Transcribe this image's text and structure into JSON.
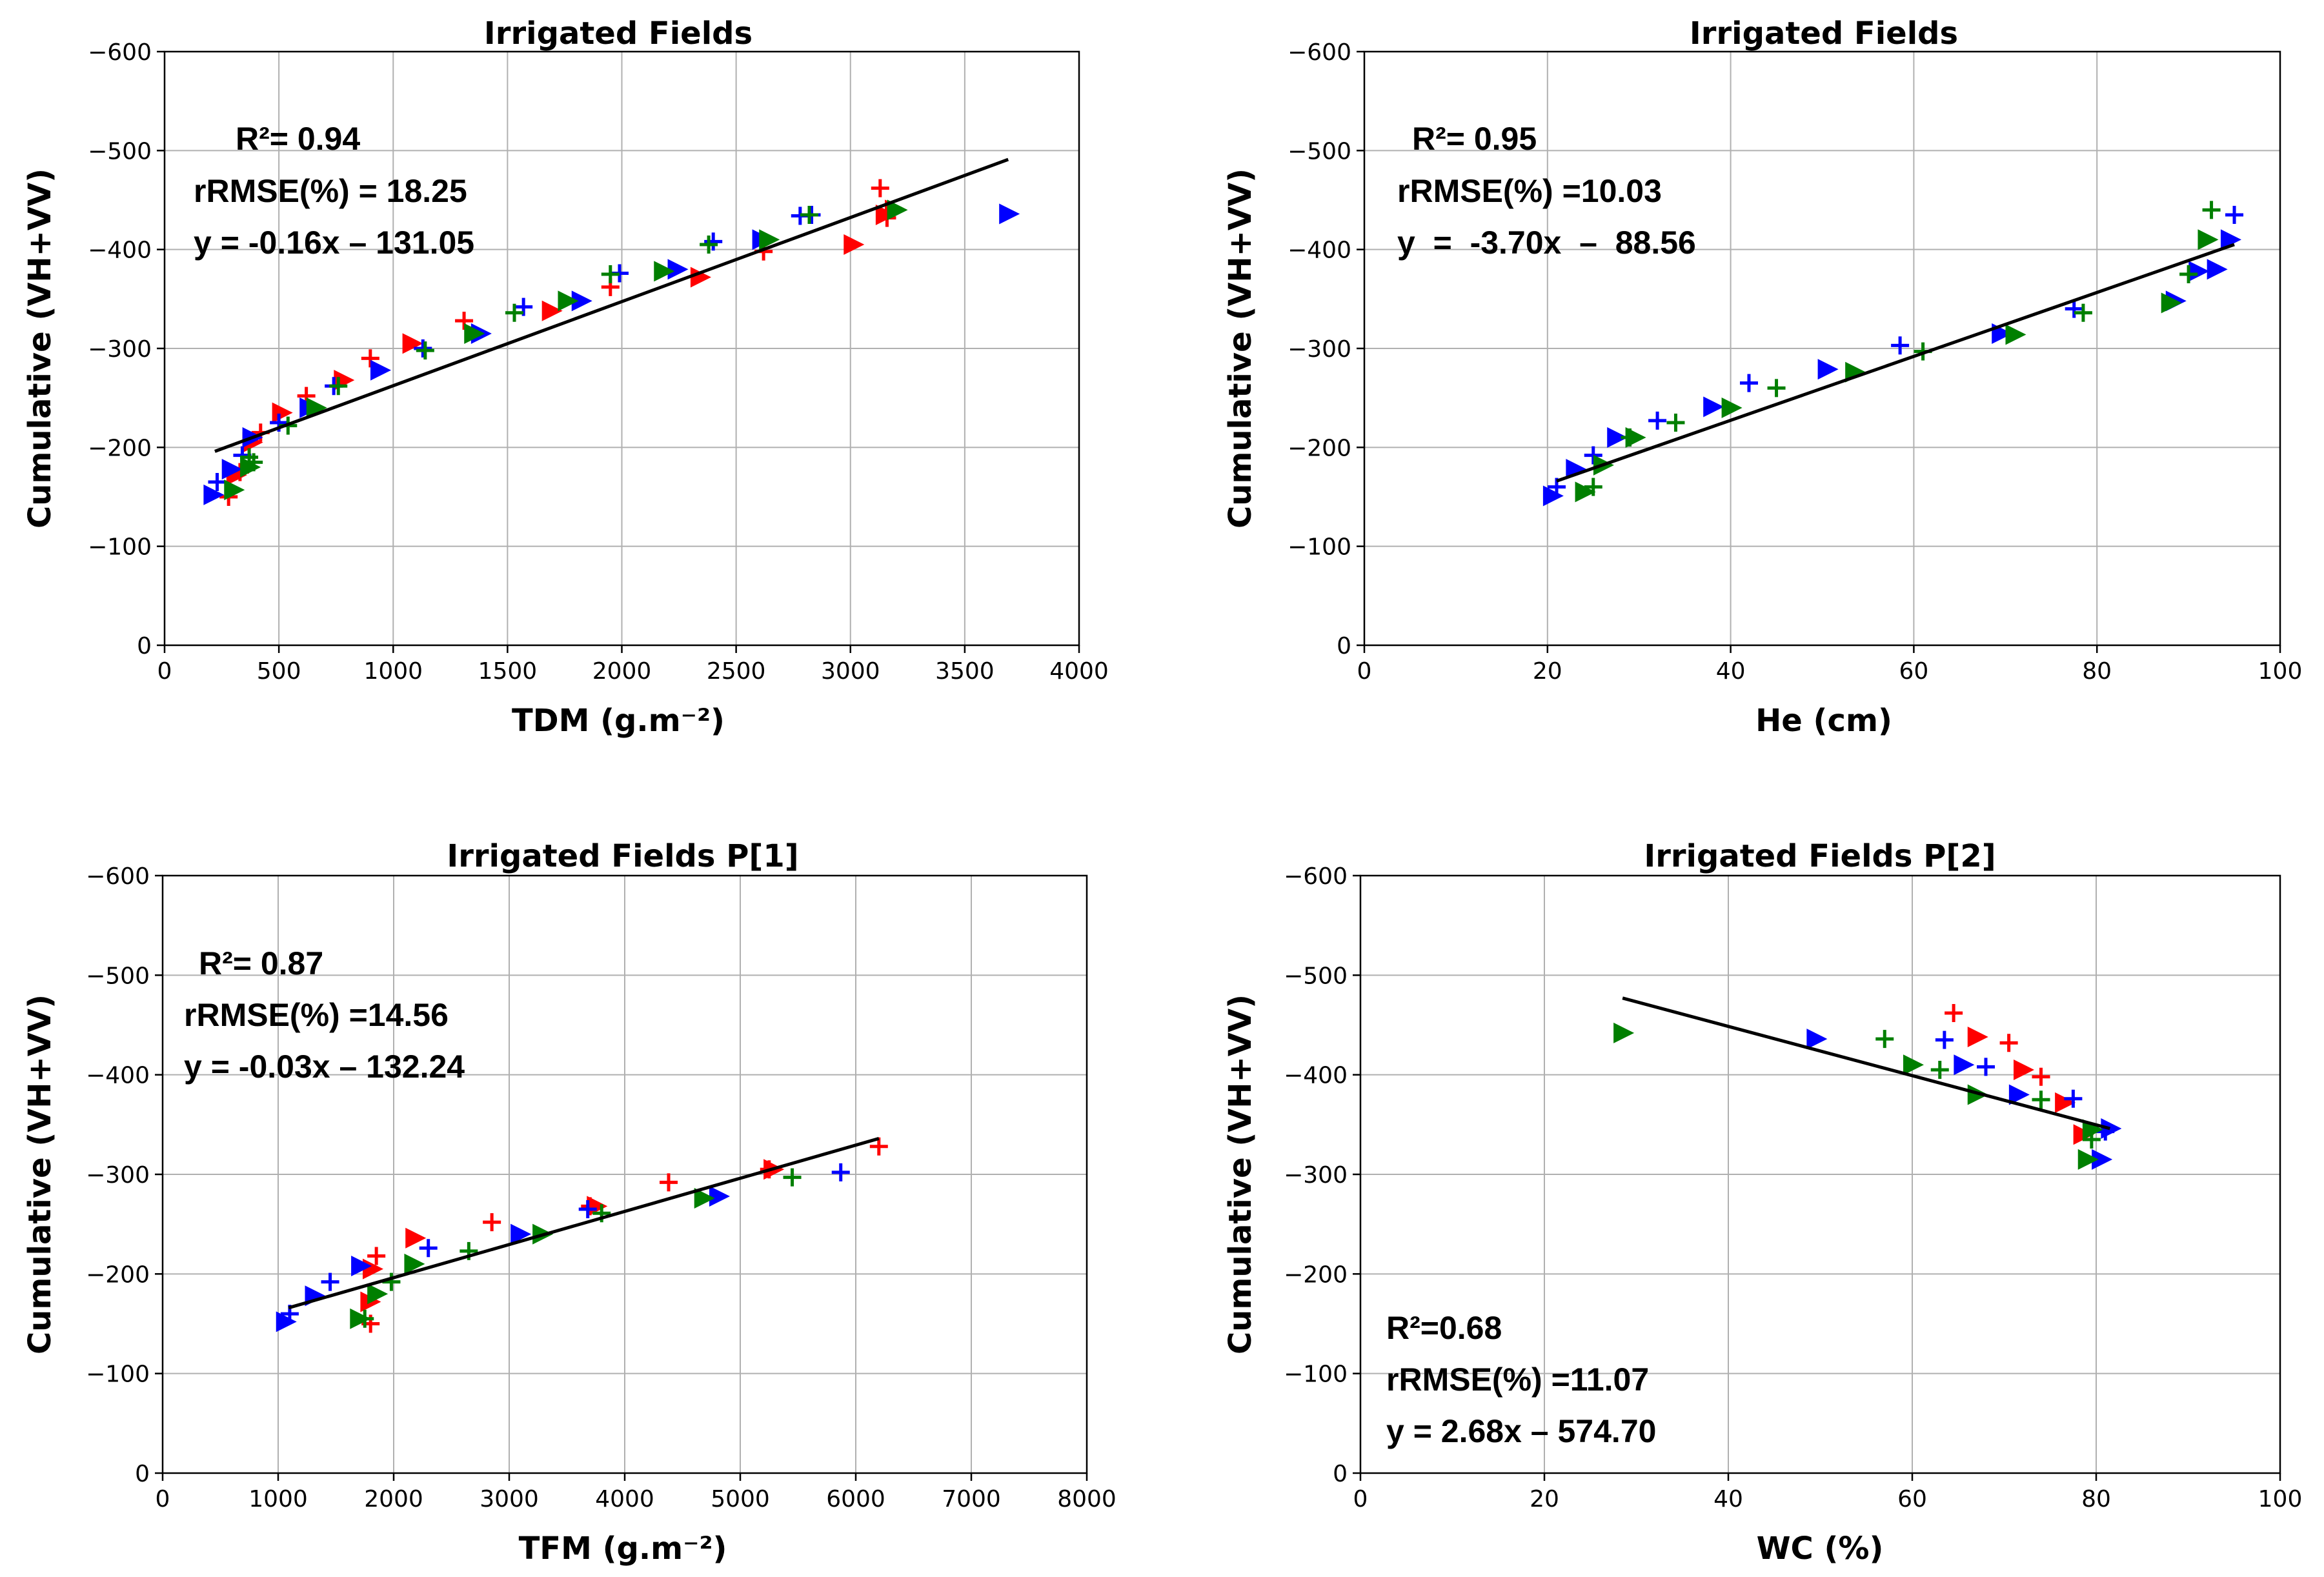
{
  "figure": {
    "panel_1": {
      "annotations": {
        "r2": "R²= 0.94",
        "rrmse": "rRMSE(%) = 18.25",
        "equation": "y = -0.16x – 131.05"
      }
    },
    "panel_2": {
      "annotations": {
        "r2": "R²= 0.95",
        "rrmse": "rRMSE(%) =10.03",
        "equation": "y  =  -3.70x  –  88.56"
      }
    },
    "panel_3": {
      "annotations": {
        "r2": "R²= 0.87",
        "rrmse": "rRMSE(%) =14.56",
        "equation": "y = -0.03x – 132.24"
      }
    },
    "panel_4": {
      "annotations": {
        "r2": "R²=0.68",
        "rrmse": "rRMSE(%) =11.07",
        "equation": "y = 2.68x – 574.70"
      }
    }
  },
  "colors": {
    "series_red": "#ff0000",
    "series_blue": "#0000ff",
    "series_green": "#007f00",
    "fit_line": "#000000"
  },
  "chart_data": [
    {
      "type": "scatter",
      "title": "Irrigated Fields",
      "xlabel": "TDM (g.m⁻²)",
      "ylabel": "Cumulative (VH+VV)",
      "xlim": [
        0,
        4000
      ],
      "ylim": [
        0,
        -600
      ],
      "xticks": [
        0,
        500,
        1000,
        1500,
        2000,
        2500,
        3000,
        3500,
        4000
      ],
      "yticks": [
        0,
        -100,
        -200,
        -300,
        -400,
        -500,
        -600
      ],
      "grid": true,
      "fit_line": {
        "x": [
          220,
          3690
        ],
        "y": [
          -196,
          -491
        ]
      },
      "series": [
        {
          "name": "red +",
          "color": "#ff0000",
          "marker": "plus",
          "x": [
            280,
            330,
            420,
            620,
            900,
            1310,
            1950,
            2620,
            3130,
            3160
          ],
          "y": [
            -150,
            -175,
            -215,
            -252,
            -290,
            -328,
            -362,
            -398,
            -462,
            -432
          ]
        },
        {
          "name": "red triangle",
          "color": "#ff0000",
          "marker": "triangle-right",
          "x": [
            310,
            380,
            510,
            780,
            1080,
            1690,
            2340,
            3010,
            3150,
            3190
          ],
          "y": [
            -172,
            -205,
            -235,
            -268,
            -305,
            -338,
            -372,
            -405,
            -435,
            -440
          ]
        },
        {
          "name": "blue +",
          "color": "#0000ff",
          "marker": "plus",
          "x": [
            230,
            340,
            500,
            740,
            1130,
            1570,
            1990,
            2400,
            2780,
            2830
          ],
          "y": [
            -165,
            -192,
            -225,
            -262,
            -300,
            -342,
            -376,
            -408,
            -434,
            -435
          ]
        },
        {
          "name": "blue triangle",
          "color": "#0000ff",
          "marker": "triangle-right",
          "x": [
            210,
            290,
            380,
            630,
            940,
            1380,
            1820,
            2240,
            2610,
            3690
          ],
          "y": [
            -152,
            -178,
            -210,
            -240,
            -278,
            -315,
            -348,
            -380,
            -410,
            -436
          ]
        },
        {
          "name": "green +",
          "color": "#007f00",
          "marker": "plus",
          "x": [
            370,
            390,
            540,
            760,
            1140,
            1530,
            1950,
            2380,
            2820
          ],
          "y": [
            -190,
            -185,
            -222,
            -262,
            -298,
            -336,
            -375,
            -405,
            -435
          ]
        },
        {
          "name": "green triangle",
          "color": "#007f00",
          "marker": "triangle-right",
          "x": [
            300,
            370,
            660,
            1350,
            1760,
            2180,
            2640,
            3200
          ],
          "y": [
            -157,
            -180,
            -240,
            -315,
            -348,
            -378,
            -410,
            -440
          ]
        }
      ]
    },
    {
      "type": "scatter",
      "title": "Irrigated Fields",
      "xlabel": "He (cm)",
      "ylabel": "Cumulative (VH+VV)",
      "xlim": [
        0,
        100
      ],
      "ylim": [
        0,
        -600
      ],
      "xticks": [
        0,
        20,
        40,
        60,
        80,
        100
      ],
      "yticks": [
        0,
        -100,
        -200,
        -300,
        -400,
        -500,
        -600
      ],
      "grid": true,
      "fit_line": {
        "x": [
          21,
          95
        ],
        "y": [
          -166,
          -405
        ]
      },
      "series": [
        {
          "name": "blue +",
          "color": "#0000ff",
          "marker": "plus",
          "x": [
            21,
            25,
            32,
            42,
            58.5,
            77.5,
            95
          ],
          "y": [
            -160,
            -192,
            -227,
            -265,
            -303,
            -340,
            -435
          ]
        },
        {
          "name": "blue triangle",
          "color": "#0000ff",
          "marker": "triangle-right",
          "x": [
            20.5,
            23,
            27.5,
            38,
            50.5,
            69.5,
            88.5,
            91,
            93,
            94.5
          ],
          "y": [
            -151,
            -178,
            -210,
            -241,
            -279,
            -315,
            -348,
            -378,
            -380,
            -410
          ]
        },
        {
          "name": "green +",
          "color": "#007f00",
          "marker": "plus",
          "x": [
            25,
            29,
            34,
            45,
            61,
            78.5,
            90,
            92.5
          ],
          "y": [
            -160,
            -210,
            -225,
            -260,
            -297,
            -336,
            -375,
            -440
          ]
        },
        {
          "name": "green triangle",
          "color": "#007f00",
          "marker": "triangle-right",
          "x": [
            24,
            26,
            29.5,
            40,
            53.5,
            71,
            88,
            92
          ],
          "y": [
            -155,
            -182,
            -210,
            -240,
            -276,
            -314,
            -346,
            -410
          ]
        }
      ]
    },
    {
      "type": "scatter",
      "title": "Irrigated Fields P[1]",
      "xlabel": "TFM (g.m⁻²)",
      "ylabel": "Cumulative (VH+VV)",
      "xlim": [
        0,
        8000
      ],
      "ylim": [
        0,
        -600
      ],
      "xticks": [
        0,
        1000,
        2000,
        3000,
        4000,
        5000,
        6000,
        7000,
        8000
      ],
      "yticks": [
        0,
        -100,
        -200,
        -300,
        -400,
        -500,
        -600
      ],
      "grid": true,
      "fit_line": {
        "x": [
          1090,
          6200
        ],
        "y": [
          -166,
          -336
        ]
      },
      "series": [
        {
          "name": "red +",
          "color": "#ff0000",
          "marker": "plus",
          "x": [
            1800,
            1850,
            2850,
            3700,
            4380,
            5250,
            6200
          ],
          "y": [
            -150,
            -218,
            -252,
            -268,
            -292,
            -305,
            -328
          ]
        },
        {
          "name": "red triangle",
          "color": "#ff0000",
          "marker": "triangle-right",
          "x": [
            1790,
            1810,
            2180,
            3750,
            5280
          ],
          "y": [
            -172,
            -205,
            -236,
            -268,
            -305
          ]
        },
        {
          "name": "blue +",
          "color": "#0000ff",
          "marker": "plus",
          "x": [
            1100,
            1450,
            2300,
            3680,
            5870
          ],
          "y": [
            -160,
            -192,
            -226,
            -265,
            -302
          ]
        },
        {
          "name": "blue triangle",
          "color": "#0000ff",
          "marker": "triangle-right",
          "x": [
            1060,
            1310,
            1710,
            3090,
            4810
          ],
          "y": [
            -152,
            -178,
            -208,
            -240,
            -278
          ]
        },
        {
          "name": "green +",
          "color": "#007f00",
          "marker": "plus",
          "x": [
            1750,
            1980,
            2650,
            3800,
            5450
          ],
          "y": [
            -155,
            -192,
            -223,
            -261,
            -297
          ]
        },
        {
          "name": "green triangle",
          "color": "#007f00",
          "marker": "triangle-right",
          "x": [
            1700,
            1850,
            2170,
            3280,
            4680
          ],
          "y": [
            -155,
            -180,
            -210,
            -240,
            -276
          ]
        }
      ]
    },
    {
      "type": "scatter",
      "title": "Irrigated Fields P[2]",
      "xlabel": "WC (%)",
      "ylabel": "Cumulative (VH+VV)",
      "xlim": [
        0,
        100
      ],
      "ylim": [
        0,
        -600
      ],
      "xticks": [
        0,
        20,
        40,
        60,
        80,
        100
      ],
      "yticks": [
        0,
        -100,
        -200,
        -300,
        -400,
        -500,
        -600
      ],
      "grid": true,
      "fit_line": {
        "x": [
          28.5,
          81.5
        ],
        "y": [
          -477,
          -346
        ]
      },
      "series": [
        {
          "name": "red +",
          "color": "#ff0000",
          "marker": "plus",
          "x": [
            64.5,
            70.5,
            74
          ],
          "y": [
            -462,
            -432,
            -398
          ]
        },
        {
          "name": "red triangle",
          "color": "#ff0000",
          "marker": "triangle-right",
          "x": [
            67,
            72,
            76.5,
            78.5
          ],
          "y": [
            -438,
            -405,
            -372,
            -340
          ]
        },
        {
          "name": "blue +",
          "color": "#0000ff",
          "marker": "plus",
          "x": [
            63.5,
            68,
            77.5,
            81
          ],
          "y": [
            -435,
            -408,
            -376,
            -343
          ]
        },
        {
          "name": "blue triangle",
          "color": "#0000ff",
          "marker": "triangle-right",
          "x": [
            49.5,
            65.5,
            71.5,
            80.5,
            81.5
          ],
          "y": [
            -436,
            -410,
            -380,
            -315,
            -346
          ]
        },
        {
          "name": "green +",
          "color": "#007f00",
          "marker": "plus",
          "x": [
            57,
            63,
            74,
            79.5
          ],
          "y": [
            -436,
            -405,
            -375,
            -335
          ]
        },
        {
          "name": "green triangle",
          "color": "#007f00",
          "marker": "triangle-right",
          "x": [
            28.5,
            60,
            67,
            79,
            79.5
          ],
          "y": [
            -442,
            -410,
            -380,
            -315,
            -345
          ]
        }
      ]
    }
  ]
}
